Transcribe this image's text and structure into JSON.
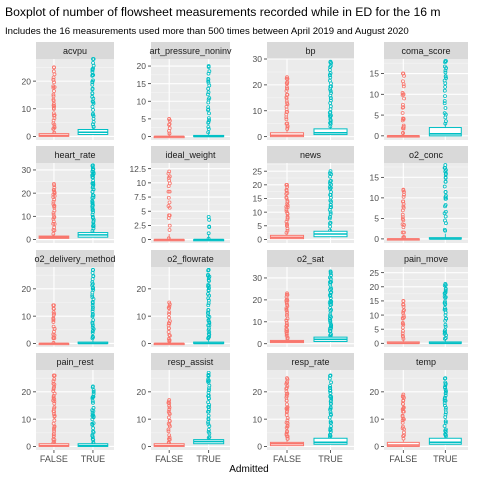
{
  "chart_data": {
    "type": "boxplot",
    "title": "Boxplot of number of flowsheet measurements recorded while in ED for the 16 m",
    "subtitle": "Includes the 16 measurements used more than 500 times between April 2019 and August 2020",
    "xlabel": "Admitted",
    "categories": [
      "FALSE",
      "TRUE"
    ],
    "colors": {
      "FALSE": "#F8766D",
      "TRUE": "#00BFC4"
    },
    "facet_layout": {
      "columns": 4,
      "rows": 4,
      "scales": "free_y"
    },
    "panels": [
      {
        "name": "acvpu",
        "ylim": [
          -1.3,
          28
        ],
        "yticks": [
          0,
          10,
          20
        ],
        "groups": [
          {
            "category": "FALSE",
            "q1": 0,
            "median": 0.3,
            "q3": 1,
            "max_outlier": 25
          },
          {
            "category": "TRUE",
            "q1": 0.7,
            "median": 1.5,
            "q3": 2.5,
            "max_outlier": 28
          }
        ]
      },
      {
        "name": "art_pressure_noninv",
        "ylim": [
          -1,
          22
        ],
        "yticks": [
          0,
          5,
          10,
          15,
          20
        ],
        "groups": [
          {
            "category": "FALSE",
            "q1": 0,
            "median": 0,
            "q3": 0,
            "max_outlier": 5
          },
          {
            "category": "TRUE",
            "q1": 0,
            "median": 0,
            "q3": 0.3,
            "max_outlier": 20
          }
        ]
      },
      {
        "name": "bp",
        "ylim": [
          -1.3,
          30
        ],
        "yticks": [
          0,
          10,
          20,
          30
        ],
        "groups": [
          {
            "category": "FALSE",
            "q1": 0,
            "median": 0.5,
            "q3": 1.5,
            "max_outlier": 23
          },
          {
            "category": "TRUE",
            "q1": 0.8,
            "median": 1.5,
            "q3": 3,
            "max_outlier": 29
          }
        ]
      },
      {
        "name": "coma_score",
        "ylim": [
          -1,
          18.5
        ],
        "yticks": [
          0,
          5,
          10,
          15
        ],
        "groups": [
          {
            "category": "FALSE",
            "q1": 0,
            "median": 0,
            "q3": 0,
            "max_outlier": 15
          },
          {
            "category": "TRUE",
            "q1": 0,
            "median": 0.5,
            "q3": 2,
            "max_outlier": 18
          }
        ]
      },
      {
        "name": "heart_rate",
        "ylim": [
          -1.5,
          33
        ],
        "yticks": [
          0,
          10,
          20,
          30
        ],
        "groups": [
          {
            "category": "FALSE",
            "q1": 0.5,
            "median": 1,
            "q3": 1.5,
            "max_outlier": 24
          },
          {
            "category": "TRUE",
            "q1": 1,
            "median": 2,
            "q3": 3,
            "max_outlier": 32
          }
        ]
      },
      {
        "name": "ideal_weight",
        "ylim": [
          -0.6,
          13.5
        ],
        "yticks": [
          0,
          2.5,
          5,
          7.5,
          10,
          12.5
        ],
        "groups": [
          {
            "category": "FALSE",
            "q1": 0,
            "median": 0,
            "q3": 0,
            "max_outlier": 12
          },
          {
            "category": "TRUE",
            "q1": 0,
            "median": 0,
            "q3": 0,
            "max_outlier": 4
          }
        ]
      },
      {
        "name": "news",
        "ylim": [
          -1.3,
          28
        ],
        "yticks": [
          0,
          5,
          10,
          15,
          20,
          25
        ],
        "groups": [
          {
            "category": "FALSE",
            "q1": 0.3,
            "median": 0.8,
            "q3": 1.5,
            "max_outlier": 20
          },
          {
            "category": "TRUE",
            "q1": 1,
            "median": 2,
            "q3": 3,
            "max_outlier": 25
          }
        ]
      },
      {
        "name": "o2_conc",
        "ylim": [
          -1,
          18.5
        ],
        "yticks": [
          0,
          5,
          10,
          15
        ],
        "groups": [
          {
            "category": "FALSE",
            "q1": 0,
            "median": 0,
            "q3": 0,
            "max_outlier": 12
          },
          {
            "category": "TRUE",
            "q1": 0,
            "median": 0,
            "q3": 0.3,
            "max_outlier": 18
          }
        ]
      },
      {
        "name": "o2_delivery_method",
        "ylim": [
          -1.3,
          28
        ],
        "yticks": [
          0,
          10,
          20
        ],
        "groups": [
          {
            "category": "FALSE",
            "q1": 0,
            "median": 0,
            "q3": 0,
            "max_outlier": 14
          },
          {
            "category": "TRUE",
            "q1": 0,
            "median": 0,
            "q3": 0.5,
            "max_outlier": 27
          }
        ]
      },
      {
        "name": "o2_flowrate",
        "ylim": [
          -1.3,
          28
        ],
        "yticks": [
          0,
          10,
          20
        ],
        "groups": [
          {
            "category": "FALSE",
            "q1": 0,
            "median": 0,
            "q3": 0,
            "max_outlier": 15
          },
          {
            "category": "TRUE",
            "q1": 0,
            "median": 0,
            "q3": 0.5,
            "max_outlier": 27
          }
        ]
      },
      {
        "name": "o2_sat",
        "ylim": [
          -1.5,
          35
        ],
        "yticks": [
          0,
          10,
          20,
          30
        ],
        "groups": [
          {
            "category": "FALSE",
            "q1": 0.5,
            "median": 1,
            "q3": 1.5,
            "max_outlier": 23
          },
          {
            "category": "TRUE",
            "q1": 1,
            "median": 2,
            "q3": 3,
            "max_outlier": 33
          }
        ]
      },
      {
        "name": "pain_move",
        "ylim": [
          -1.3,
          27
        ],
        "yticks": [
          0,
          5,
          10,
          15,
          20,
          25
        ],
        "groups": [
          {
            "category": "FALSE",
            "q1": 0,
            "median": 0,
            "q3": 0.5,
            "max_outlier": 15
          },
          {
            "category": "TRUE",
            "q1": 0,
            "median": 0,
            "q3": 0.5,
            "max_outlier": 21
          }
        ]
      },
      {
        "name": "pain_rest",
        "ylim": [
          -1.3,
          28
        ],
        "yticks": [
          0,
          10,
          20
        ],
        "groups": [
          {
            "category": "FALSE",
            "q1": 0,
            "median": 0.3,
            "q3": 1,
            "max_outlier": 26
          },
          {
            "category": "TRUE",
            "q1": 0,
            "median": 0.3,
            "q3": 1,
            "max_outlier": 22
          }
        ]
      },
      {
        "name": "resp_assist",
        "ylim": [
          -1.3,
          28
        ],
        "yticks": [
          0,
          10,
          20
        ],
        "groups": [
          {
            "category": "FALSE",
            "q1": 0,
            "median": 0.3,
            "q3": 1,
            "max_outlier": 17
          },
          {
            "category": "TRUE",
            "q1": 1,
            "median": 1.8,
            "q3": 2.5,
            "max_outlier": 27
          }
        ]
      },
      {
        "name": "resp_rate",
        "ylim": [
          -1.3,
          28
        ],
        "yticks": [
          0,
          10,
          20
        ],
        "groups": [
          {
            "category": "FALSE",
            "q1": 0.3,
            "median": 1,
            "q3": 1.5,
            "max_outlier": 25
          },
          {
            "category": "TRUE",
            "q1": 0.8,
            "median": 1.5,
            "q3": 3,
            "max_outlier": 26
          }
        ]
      },
      {
        "name": "temp",
        "ylim": [
          -1.3,
          28
        ],
        "yticks": [
          0,
          10,
          20
        ],
        "groups": [
          {
            "category": "FALSE",
            "q1": 0,
            "median": 0.5,
            "q3": 1.5,
            "max_outlier": 19
          },
          {
            "category": "TRUE",
            "q1": 0.8,
            "median": 1.5,
            "q3": 3,
            "max_outlier": 25
          }
        ]
      }
    ]
  }
}
